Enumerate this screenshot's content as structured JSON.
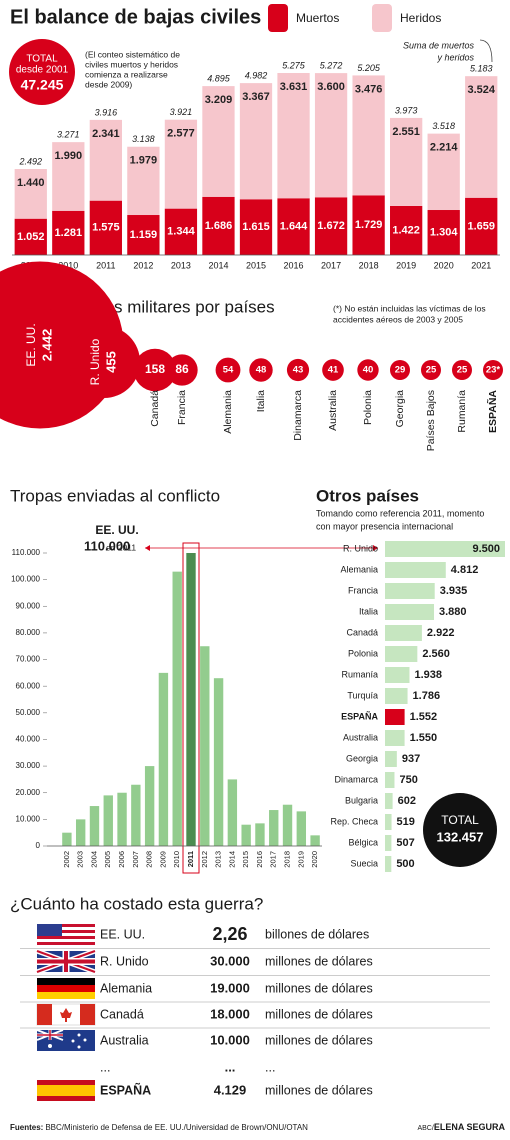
{
  "chart_data": [
    {
      "type": "stacked-bar",
      "title": "El balance de bajas civiles",
      "categories": [
        "2009",
        "2010",
        "2011",
        "2012",
        "2013",
        "2014",
        "2015",
        "2016",
        "2017",
        "2018",
        "2019",
        "2020",
        "2021"
      ],
      "series": [
        {
          "name": "Muertos",
          "color": "#d7001a",
          "values": [
            1052,
            1281,
            1575,
            1159,
            1344,
            1686,
            1615,
            1644,
            1672,
            1729,
            1422,
            1304,
            1659
          ],
          "value_labels": [
            "1.052",
            "1.281",
            "1.575",
            "1.159",
            "1.344",
            "1.686",
            "1.615",
            "1.644",
            "1.672",
            "1.729",
            "1.422",
            "1.304",
            "1.659"
          ]
        },
        {
          "name": "Heridos",
          "color": "#f6c6cc",
          "values": [
            1440,
            1990,
            2341,
            1979,
            2577,
            3209,
            3367,
            3631,
            3600,
            3476,
            2551,
            2214,
            3524
          ],
          "value_labels": [
            "1.440",
            "1.990",
            "2.341",
            "1.979",
            "2.577",
            "3.209",
            "3.367",
            "3.631",
            "3.600",
            "3.476",
            "2.551",
            "2.214",
            "3.524"
          ]
        }
      ],
      "totals": {
        "values": [
          2492,
          3271,
          3916,
          3138,
          3921,
          4895,
          4982,
          5275,
          5272,
          5205,
          3973,
          3518,
          5183
        ],
        "value_labels": [
          "2.492",
          "3.271",
          "3.916",
          "3.138",
          "3.921",
          "4.895",
          "4.982",
          "5.275",
          "5.272",
          "5.205",
          "3.973",
          "3.518",
          "5.183"
        ]
      },
      "total_box": {
        "label": "TOTAL",
        "sublabel": "desde 2001",
        "value_label": "47.245"
      },
      "note": [
        "(El conteo sistemático de",
        "civiles muertos y heridos",
        "comienza a realizarse",
        "desde 2009)"
      ],
      "annotation": [
        "Suma de muertos",
        "y heridos"
      ]
    },
    {
      "type": "bubble",
      "title": "Bajas militares por países",
      "note": [
        "(*) No están incluidas las víctimas de los",
        "accidentes aéreos de 2003 y 2005"
      ],
      "categories": [
        "EE. UU.",
        "R. Unido",
        "Canadá",
        "Francia",
        "Alemania",
        "Italia",
        "Dinamarca",
        "Australia",
        "Polonia",
        "Georgia",
        "Países Bajos",
        "Rumanía",
        "ESPAÑA"
      ],
      "values": [
        2442,
        455,
        158,
        86,
        54,
        48,
        43,
        41,
        40,
        29,
        25,
        25,
        23
      ],
      "value_labels": [
        "2.442",
        "455",
        "158",
        "86",
        "54",
        "48",
        "43",
        "41",
        "40",
        "29",
        "25",
        "25",
        "23*"
      ],
      "color": "#d7001a",
      "highlight": "ESPAÑA"
    },
    {
      "type": "bar",
      "title": "Tropas enviadas al conflicto",
      "categories": [
        "2002",
        "2003",
        "2004",
        "2005",
        "2006",
        "2007",
        "2008",
        "2009",
        "2010",
        "2011",
        "2012",
        "2013",
        "2014",
        "2015",
        "2016",
        "2017",
        "2018",
        "2019",
        "2020"
      ],
      "values": [
        5000,
        10000,
        15000,
        19000,
        20000,
        23000,
        30000,
        65000,
        103000,
        110000,
        75000,
        63000,
        25000,
        8000,
        8500,
        13500,
        15500,
        13000,
        4000
      ],
      "ylim": [
        0,
        110000
      ],
      "yticks": [
        0,
        {
          "value": 10000,
          "label": "10.000"
        },
        {
          "value": 20000,
          "label": "20.000"
        },
        {
          "value": 30000,
          "label": "30.000"
        },
        {
          "value": 40000,
          "label": "40.000"
        },
        {
          "value": 50000,
          "label": "50.000"
        },
        {
          "value": 60000,
          "label": "60.000"
        },
        {
          "value": 70000,
          "label": "70.000"
        },
        {
          "value": 80000,
          "label": "80.000"
        },
        {
          "value": 90000,
          "label": "90.000"
        },
        {
          "value": 100000,
          "label": "100.000"
        },
        {
          "value": 110000,
          "label": "110.000"
        }
      ],
      "color": "#93cc8e",
      "highlight": "2011",
      "highlight_color": "#4c8c50",
      "annotation": {
        "label": "EE. UU.",
        "value_label": "110.000",
        "sublabel": "en 2011"
      }
    },
    {
      "type": "barh",
      "title": "Otros países",
      "subtitle": [
        "Tomando como referencia 2011, momento",
        "con mayor presencia internacional"
      ],
      "categories": [
        "R. Unido",
        "Alemania",
        "Francia",
        "Italia",
        "Canadá",
        "Polonia",
        "Rumanía",
        "Turquía",
        "ESPAÑA",
        "Australia",
        "Georgia",
        "Dinamarca",
        "Bulgaria",
        "Rep. Checa",
        "Bélgica",
        "Suecia"
      ],
      "values": [
        9500,
        4812,
        3935,
        3880,
        2922,
        2560,
        1938,
        1786,
        1552,
        1550,
        937,
        750,
        602,
        519,
        507,
        500
      ],
      "value_labels": [
        "9.500",
        "4.812",
        "3.935",
        "3.880",
        "2.922",
        "2.560",
        "1.938",
        "1.786",
        "1.552",
        "1.550",
        "937",
        "750",
        "602",
        "519",
        "507",
        "500"
      ],
      "color": "#c6e6c0",
      "highlight": "ESPAÑA",
      "highlight_color": "#d7001a",
      "total": {
        "label": "TOTAL",
        "value_label": "132.457"
      }
    }
  ],
  "costs": {
    "title": "¿Cuánto ha costado esta guerra?",
    "rows": [
      [
        "EE. UU.",
        "2,26",
        "billones de dólares"
      ],
      [
        "R. Unido",
        "30.000",
        "millones de dólares"
      ],
      [
        "Alemania",
        "19.000",
        "millones de dólares"
      ],
      [
        "Canadá",
        "18.000",
        "millones de dólares"
      ],
      [
        "Australia",
        "10.000",
        "millones de dólares"
      ],
      [
        "...",
        "...",
        "..."
      ],
      [
        "ESPAÑA",
        "4.129",
        "millones de dólares"
      ]
    ]
  },
  "footer": {
    "sources_label": "Fuentes:",
    "sources": "BBC/Ministerio de Defensa de EE. UU./Universidad de Brown/ONU/OTAN",
    "credit_prefix": "ABC/",
    "credit": "ELENA SEGURA"
  }
}
